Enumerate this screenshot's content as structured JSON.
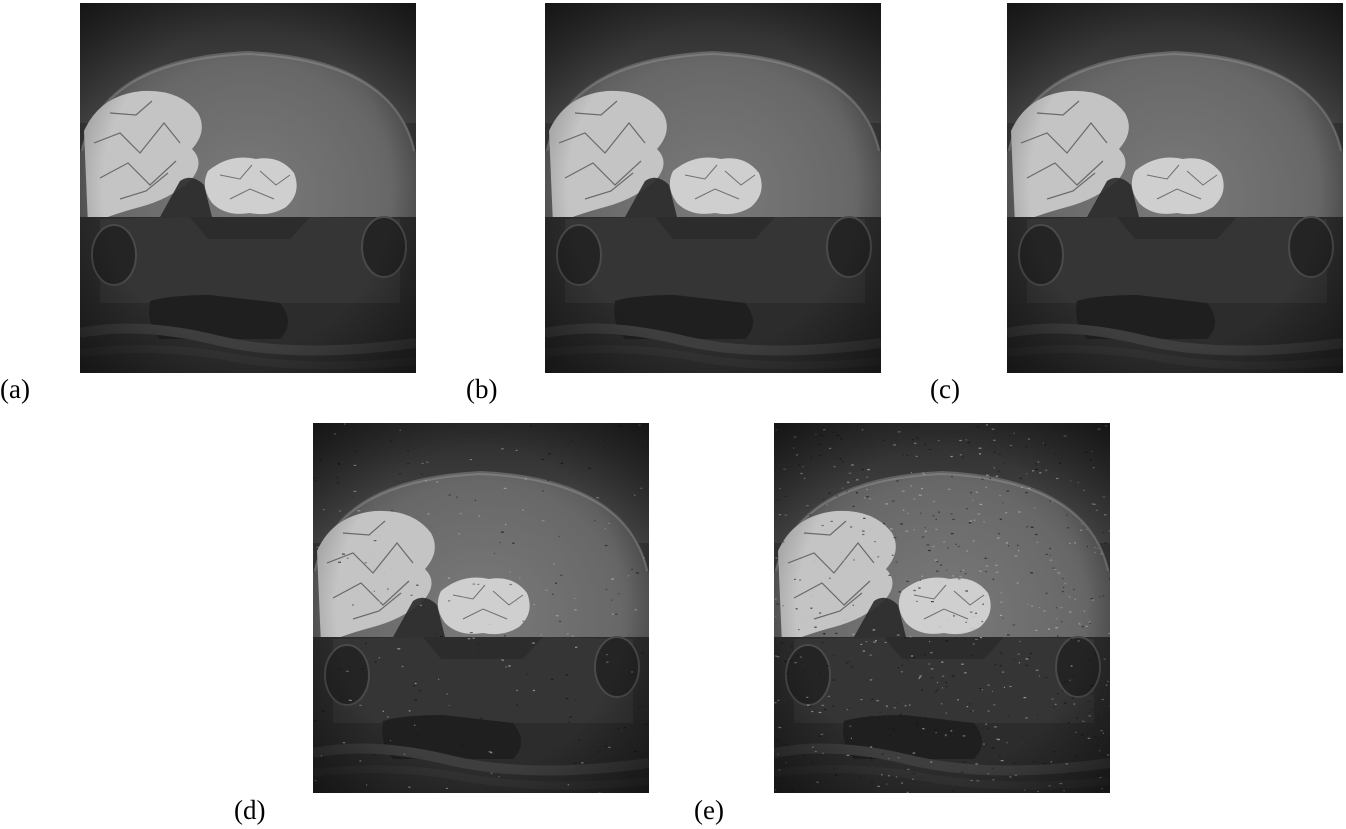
{
  "figure": {
    "panels": [
      {
        "id": "a",
        "caption": "(a)",
        "noise": "none"
      },
      {
        "id": "b",
        "caption": "(b)",
        "noise": "none"
      },
      {
        "id": "c",
        "caption": "(c)",
        "noise": "none"
      },
      {
        "id": "d",
        "caption": "(d)",
        "noise": "light"
      },
      {
        "id": "e",
        "caption": "(e)",
        "noise": "heavy"
      }
    ]
  },
  "colors": {
    "sky_top": "#3a3a3a",
    "ground": "#6e6e6e",
    "rock_light": "#c8c8c8",
    "shadow": "#262626",
    "vignette": "#151515"
  }
}
